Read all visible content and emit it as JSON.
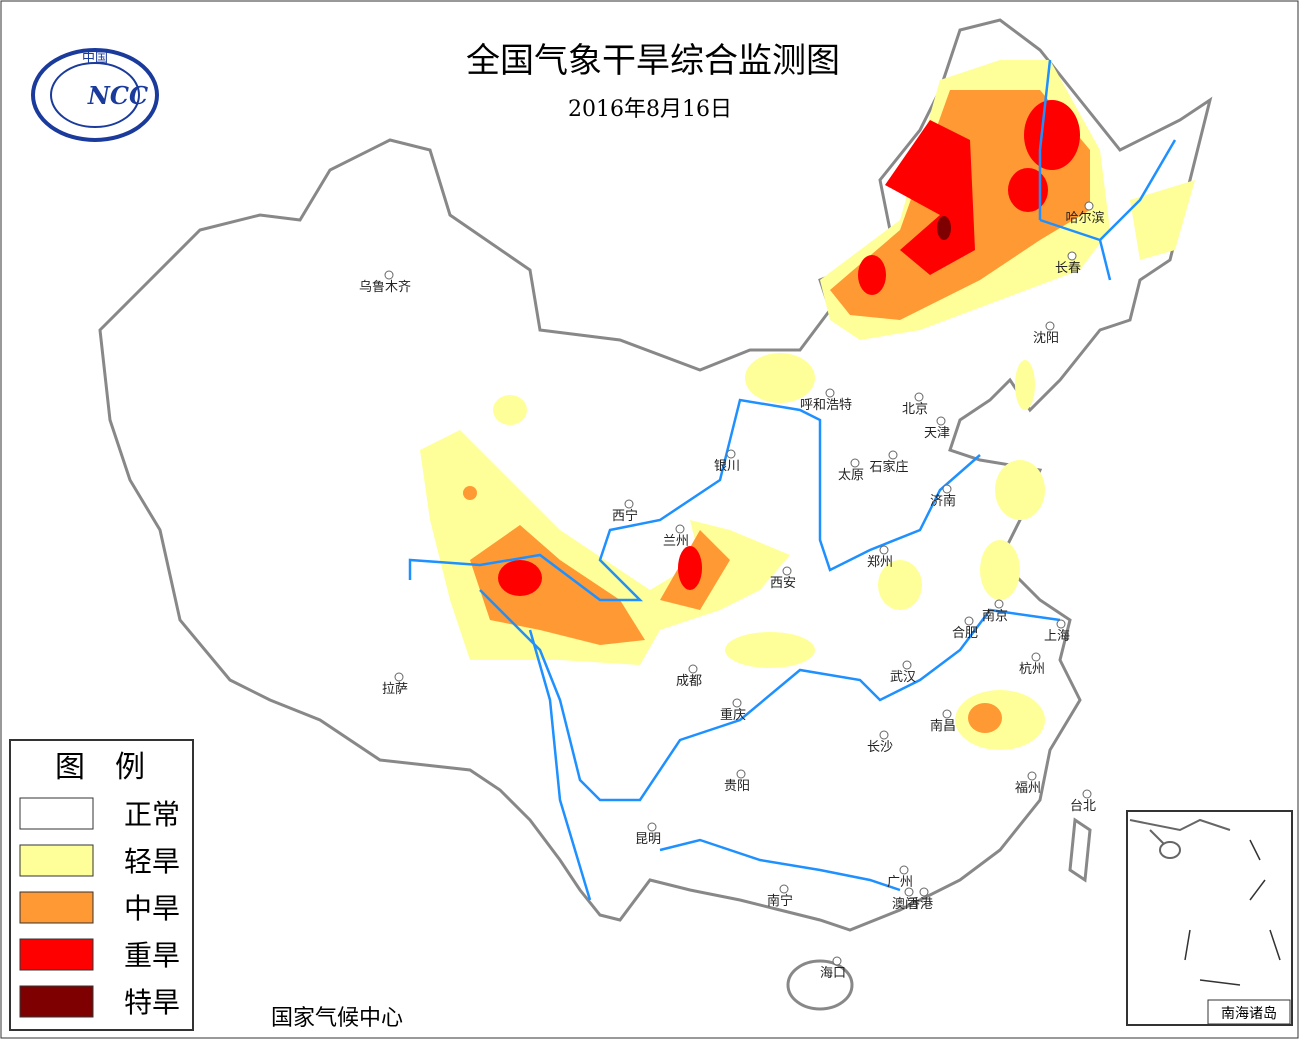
{
  "header": {
    "title": "全国气象干旱综合监测图",
    "date": "2016年8月16日"
  },
  "logo": {
    "top": "中国",
    "text": "NCC"
  },
  "legend": {
    "title": "图　例",
    "items": [
      {
        "label": "正常",
        "color": "#ffffff"
      },
      {
        "label": "轻旱",
        "color": "#ffff99"
      },
      {
        "label": "中旱",
        "color": "#ff9933"
      },
      {
        "label": "重旱",
        "color": "#ff0000"
      },
      {
        "label": "特旱",
        "color": "#7f0000"
      }
    ]
  },
  "cities": [
    "乌鲁木齐",
    "拉萨",
    "西宁",
    "兰州",
    "银川",
    "呼和浩特",
    "北京",
    "天津",
    "石家庄",
    "太原",
    "济南",
    "郑州",
    "西安",
    "成都",
    "重庆",
    "贵阳",
    "昆明",
    "南宁",
    "广州",
    "澳门",
    "香港",
    "海口",
    "长沙",
    "武汉",
    "南昌",
    "福州",
    "台北",
    "杭州",
    "上海",
    "南京",
    "合肥",
    "沈阳",
    "长春",
    "哈尔滨"
  ],
  "footer": "国家气候中心",
  "inset": {
    "label": "南海诸岛"
  }
}
